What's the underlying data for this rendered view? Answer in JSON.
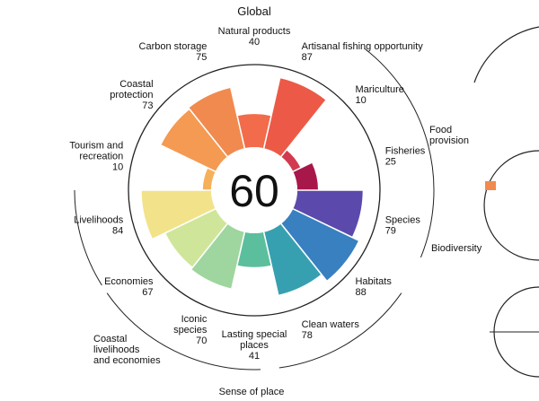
{
  "chart_data": {
    "type": "radial-bar",
    "title": "Global",
    "overall_score": "60",
    "max_value": 100,
    "goals": [
      {
        "label": [
          "Natural products"
        ],
        "value": 40,
        "value_text": "40",
        "color": "#f26b4a"
      },
      {
        "label": [
          "Artisanal fishing opportunity"
        ],
        "value": 87,
        "value_text": "87",
        "color": "#ec5a47"
      },
      {
        "label": [
          "Mariculture"
        ],
        "value": 10,
        "value_text": "10",
        "color": "#d23a4f"
      },
      {
        "label": [
          "Fisheries"
        ],
        "value": 25,
        "value_text": "25",
        "color": "#a8174a"
      },
      {
        "label": [
          "Species"
        ],
        "value": 79,
        "value_text": "79",
        "color": "#5b4aab"
      },
      {
        "label": [
          "Habitats"
        ],
        "value": 88,
        "value_text": "88",
        "color": "#3880c0"
      },
      {
        "label": [
          "Clean waters"
        ],
        "value": 78,
        "value_text": "78",
        "color": "#37a0b0"
      },
      {
        "label": [
          "Lasting special",
          "places"
        ],
        "value": 41,
        "value_text": "41",
        "color": "#5bbf9d"
      },
      {
        "label": [
          "Iconic",
          "species"
        ],
        "value": 70,
        "value_text": "70",
        "color": "#9fd59e"
      },
      {
        "label": [
          "Economies"
        ],
        "value": 67,
        "value_text": "67",
        "color": "#cfe69a"
      },
      {
        "label": [
          "Livelihoods"
        ],
        "value": 84,
        "value_text": "84",
        "color": "#f2e38a"
      },
      {
        "label": [
          "Tourism and",
          "recreation"
        ],
        "value": 10,
        "value_text": "10",
        "color": "#f6b05c"
      },
      {
        "label": [
          "Coastal",
          "protection"
        ],
        "value": 73,
        "value_text": "73",
        "color": "#f49a52"
      },
      {
        "label": [
          "Carbon storage"
        ],
        "value": 75,
        "value_text": "75",
        "color": "#f18a4e"
      }
    ],
    "groups": [
      {
        "label": [
          "Food",
          "provision"
        ]
      },
      {
        "label": [
          "Biodiversity"
        ]
      },
      {
        "label": [
          "Sense of place"
        ]
      },
      {
        "label": [
          "Coastal",
          "livelihoods",
          "and economies"
        ]
      }
    ]
  }
}
